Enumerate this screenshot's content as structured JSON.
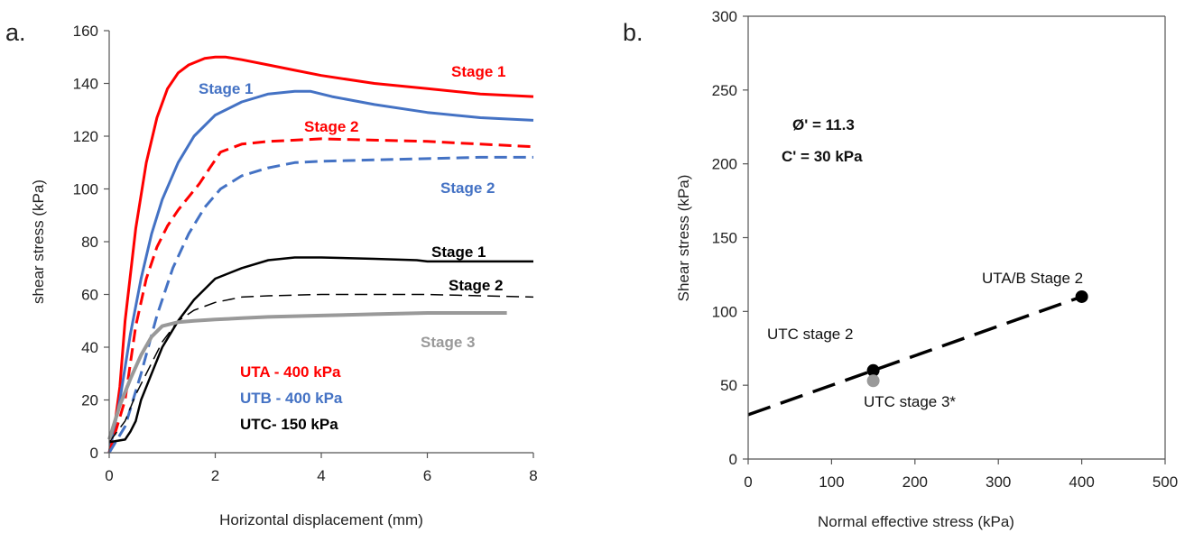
{
  "chart_data": [
    {
      "type": "line",
      "panel_label": "a.",
      "xlabel": "Horizontal displacement (mm)",
      "ylabel": "shear stress (kPa)",
      "xlim": [
        0,
        8
      ],
      "ylim": [
        0,
        160
      ],
      "xticks": [
        "0",
        "2",
        "4",
        "6",
        "8"
      ],
      "yticks": [
        "0",
        "20",
        "40",
        "60",
        "80",
        "100",
        "120",
        "140",
        "160"
      ],
      "grid": false,
      "legend": [
        {
          "text": "UTA - 400 kPa",
          "color": "#ff0000"
        },
        {
          "text": "UTB - 400 kPa",
          "color": "#4472c4"
        },
        {
          "text": "UTC- 150 kPa",
          "color": "#000000"
        }
      ],
      "series": [
        {
          "name": "Stage 1",
          "color": "#ff0000",
          "dash": "solid",
          "width": 3,
          "x": [
            0,
            0.1,
            0.2,
            0.3,
            0.5,
            0.7,
            0.9,
            1.1,
            1.3,
            1.5,
            1.8,
            2.0,
            2.2,
            2.5,
            3.0,
            3.5,
            4.0,
            5.0,
            6.0,
            7.0,
            8.0
          ],
          "y": [
            0,
            10,
            25,
            50,
            85,
            110,
            127,
            138,
            144,
            147,
            149.5,
            150,
            150,
            149,
            147,
            145,
            143,
            140,
            138,
            136,
            135
          ]
        },
        {
          "name": "Stage 1",
          "color": "#4472c4",
          "dash": "solid",
          "width": 3,
          "x": [
            0,
            0.2,
            0.4,
            0.6,
            0.8,
            1.0,
            1.3,
            1.6,
            2.0,
            2.5,
            3.0,
            3.5,
            3.8,
            4.2,
            5.0,
            6.0,
            7.0,
            8.0
          ],
          "y": [
            0,
            20,
            45,
            66,
            83,
            96,
            110,
            120,
            128,
            133,
            136,
            137,
            137,
            135,
            132,
            129,
            127,
            126
          ]
        },
        {
          "name": "Stage 2",
          "color": "#ff0000",
          "dash": "dash",
          "width": 3,
          "x": [
            0,
            0.3,
            0.5,
            0.7,
            0.9,
            1.1,
            1.3,
            1.5,
            1.7,
            1.9,
            2.1,
            2.5,
            3.0,
            3.5,
            4.0,
            5.0,
            6.0,
            7.0,
            8.0
          ],
          "y": [
            0,
            20,
            48,
            66,
            78,
            86,
            92,
            97,
            102,
            108,
            114,
            117,
            118,
            118.5,
            119,
            118.5,
            118,
            117,
            116
          ]
        },
        {
          "name": "Stage 2",
          "color": "#4472c4",
          "dash": "dash",
          "width": 3,
          "x": [
            0,
            0.3,
            0.6,
            0.9,
            1.2,
            1.5,
            1.8,
            2.1,
            2.5,
            3.0,
            3.5,
            4.0,
            5.0,
            6.0,
            7.0,
            8.0
          ],
          "y": [
            0,
            10,
            30,
            52,
            70,
            83,
            93,
            100,
            105,
            108,
            110,
            110.5,
            111,
            111.5,
            112,
            112
          ]
        },
        {
          "name": "Stage 1",
          "color": "#000000",
          "dash": "solid",
          "width": 2.5,
          "x": [
            0,
            0.3,
            0.4,
            0.5,
            0.6,
            0.8,
            1.0,
            1.3,
            1.6,
            2.0,
            2.5,
            3.0,
            3.5,
            4.0,
            5.0,
            5.8,
            6.0,
            7.0,
            8.0
          ],
          "y": [
            4,
            5,
            8,
            12,
            20,
            30,
            40,
            50,
            58,
            66,
            70,
            73,
            74,
            74,
            73.5,
            73,
            72.5,
            72.5,
            72.5
          ]
        },
        {
          "name": "Stage 2",
          "color": "#000000",
          "dash": "dash",
          "width": 1.5,
          "x": [
            0,
            0.3,
            0.5,
            0.8,
            1.0,
            1.3,
            1.6,
            2.0,
            2.5,
            3.0,
            4.0,
            5.0,
            6.0,
            7.0,
            8.0
          ],
          "y": [
            4,
            12,
            22,
            34,
            42,
            50,
            54,
            57,
            59,
            59.5,
            60,
            60,
            60,
            59.5,
            59
          ]
        },
        {
          "name": "Stage 3",
          "color": "#999999",
          "dash": "solid",
          "width": 4,
          "x": [
            0,
            0.2,
            0.4,
            0.6,
            0.8,
            1.0,
            1.3,
            1.6,
            2.0,
            2.5,
            3.0,
            4.0,
            5.0,
            6.0,
            7.0,
            7.5
          ],
          "y": [
            5,
            18,
            28,
            37,
            44,
            48,
            49.5,
            50,
            50.5,
            51,
            51.5,
            52,
            52.5,
            53,
            53,
            53
          ]
        }
      ],
      "labels": [
        {
          "text": "Stage 1",
          "color": "#ff0000"
        },
        {
          "text": "Stage 1",
          "color": "#4472c4"
        },
        {
          "text": "Stage 2",
          "color": "#ff0000"
        },
        {
          "text": "Stage 2",
          "color": "#4472c4"
        },
        {
          "text": "Stage 1",
          "color": "#000000"
        },
        {
          "text": "Stage 2",
          "color": "#000000"
        },
        {
          "text": "Stage 3",
          "color": "#999999"
        }
      ]
    },
    {
      "type": "scatter",
      "panel_label": "b.",
      "xlabel": "Normal effective stress (kPa)",
      "ylabel": "Shear stress (kPa)",
      "xlim": [
        0,
        500
      ],
      "ylim": [
        0,
        300
      ],
      "xticks": [
        "0",
        "100",
        "200",
        "300",
        "400",
        "500"
      ],
      "yticks": [
        "0",
        "50",
        "100",
        "150",
        "200",
        "250",
        "300"
      ],
      "grid": false,
      "points": [
        {
          "x": 150,
          "y": 60,
          "color": "#000000",
          "label": "UTC stage 2"
        },
        {
          "x": 150,
          "y": 53,
          "color": "#999999",
          "label": "UTC stage 3*"
        },
        {
          "x": 400,
          "y": 110,
          "color": "#000000",
          "label": "UTA/B Stage 2"
        }
      ],
      "fit_line": {
        "x": [
          0,
          400
        ],
        "y": [
          30,
          110
        ],
        "color": "#000000",
        "dash": "long-dash"
      },
      "annotations": [
        "Ø' = 11.3",
        "C' = 30 kPa"
      ]
    }
  ]
}
